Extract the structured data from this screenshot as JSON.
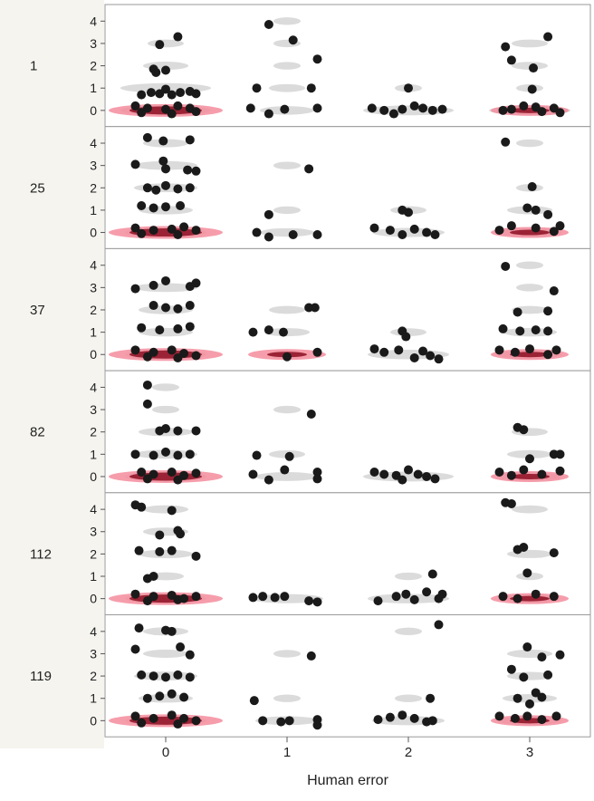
{
  "chart_data": {
    "type": "scatter",
    "xlabel": "Human error",
    "x_ticks": [
      "0",
      "1",
      "2",
      "3"
    ],
    "xlim": [
      -0.5,
      3.5
    ],
    "y_ticks": [
      "0",
      "1",
      "2",
      "3",
      "4"
    ],
    "ylim": [
      -0.4,
      4.5
    ],
    "grid": false,
    "colors": {
      "points": "#1a1a1a",
      "contour": "#cccccc",
      "density_outer": "#f48c9c",
      "density_inner": "#9b2335",
      "label_column": "#f5f4ef"
    },
    "panels": [
      {
        "label": "1",
        "points": [
          [
            0.1,
            3.3
          ],
          [
            -0.05,
            2.95
          ],
          [
            -0.1,
            1.85
          ],
          [
            0.0,
            1.8
          ],
          [
            -0.08,
            1.7
          ],
          [
            0.0,
            0.95
          ],
          [
            -0.2,
            0.7
          ],
          [
            -0.12,
            0.8
          ],
          [
            -0.05,
            0.75
          ],
          [
            0.05,
            0.7
          ],
          [
            0.12,
            0.8
          ],
          [
            0.2,
            0.85
          ],
          [
            0.25,
            0.75
          ],
          [
            -0.25,
            0.2
          ],
          [
            -0.15,
            0.1
          ],
          [
            0.0,
            0.05
          ],
          [
            0.1,
            0.2
          ],
          [
            0.2,
            0.1
          ],
          [
            0.25,
            -0.05
          ],
          [
            -0.2,
            -0.1
          ],
          [
            0.05,
            -0.15
          ],
          [
            0.85,
            3.85
          ],
          [
            1.05,
            3.15
          ],
          [
            1.25,
            2.3
          ],
          [
            0.75,
            1.0
          ],
          [
            1.2,
            1.0
          ],
          [
            0.7,
            0.1
          ],
          [
            0.85,
            -0.15
          ],
          [
            0.98,
            0.05
          ],
          [
            1.25,
            0.1
          ],
          [
            2.0,
            1.0
          ],
          [
            1.7,
            0.1
          ],
          [
            1.8,
            0.0
          ],
          [
            1.88,
            -0.15
          ],
          [
            1.95,
            0.05
          ],
          [
            2.05,
            0.2
          ],
          [
            2.12,
            0.1
          ],
          [
            2.2,
            0.0
          ],
          [
            2.28,
            0.05
          ],
          [
            2.8,
            2.85
          ],
          [
            3.15,
            3.3
          ],
          [
            2.85,
            2.25
          ],
          [
            3.03,
            1.9
          ],
          [
            3.02,
            0.95
          ],
          [
            2.78,
            0.0
          ],
          [
            2.85,
            0.05
          ],
          [
            2.95,
            0.2
          ],
          [
            3.05,
            0.15
          ],
          [
            3.1,
            -0.05
          ],
          [
            3.2,
            0.1
          ],
          [
            3.25,
            -0.1
          ]
        ],
        "density_at_zero": [
          0,
          3
        ]
      },
      {
        "label": "25",
        "points": [
          [
            -0.15,
            4.25
          ],
          [
            -0.02,
            4.1
          ],
          [
            0.2,
            4.15
          ],
          [
            -0.25,
            3.05
          ],
          [
            -0.02,
            3.2
          ],
          [
            0.0,
            2.85
          ],
          [
            0.18,
            2.8
          ],
          [
            0.25,
            2.75
          ],
          [
            -0.15,
            2.0
          ],
          [
            -0.08,
            1.9
          ],
          [
            0.0,
            2.1
          ],
          [
            0.1,
            1.95
          ],
          [
            0.2,
            2.0
          ],
          [
            -0.2,
            1.2
          ],
          [
            -0.1,
            1.1
          ],
          [
            0.0,
            1.15
          ],
          [
            0.12,
            1.2
          ],
          [
            -0.25,
            0.2
          ],
          [
            -0.1,
            0.1
          ],
          [
            0.05,
            0.15
          ],
          [
            0.15,
            0.25
          ],
          [
            0.25,
            0.1
          ],
          [
            -0.2,
            -0.05
          ],
          [
            0.1,
            -0.1
          ],
          [
            1.18,
            2.85
          ],
          [
            0.85,
            0.8
          ],
          [
            0.75,
            0.0
          ],
          [
            0.85,
            -0.2
          ],
          [
            1.05,
            -0.1
          ],
          [
            1.25,
            -0.1
          ],
          [
            1.95,
            1.0
          ],
          [
            2.0,
            0.9
          ],
          [
            1.72,
            0.2
          ],
          [
            1.85,
            0.1
          ],
          [
            1.95,
            -0.1
          ],
          [
            2.05,
            0.15
          ],
          [
            2.15,
            0.0
          ],
          [
            2.22,
            -0.1
          ],
          [
            2.8,
            4.05
          ],
          [
            3.02,
            2.05
          ],
          [
            2.98,
            1.1
          ],
          [
            3.05,
            1.0
          ],
          [
            3.15,
            0.8
          ],
          [
            2.75,
            0.1
          ],
          [
            2.85,
            0.3
          ],
          [
            3.05,
            0.2
          ],
          [
            3.2,
            0.05
          ],
          [
            3.25,
            0.3
          ]
        ],
        "density_at_zero": [
          0,
          3
        ]
      },
      {
        "label": "37",
        "points": [
          [
            -0.25,
            2.95
          ],
          [
            -0.1,
            3.1
          ],
          [
            0.0,
            3.3
          ],
          [
            0.25,
            3.2
          ],
          [
            0.2,
            3.05
          ],
          [
            -0.1,
            2.2
          ],
          [
            0.0,
            2.1
          ],
          [
            0.1,
            2.05
          ],
          [
            0.2,
            2.2
          ],
          [
            -0.2,
            1.2
          ],
          [
            -0.05,
            1.1
          ],
          [
            0.1,
            1.15
          ],
          [
            0.2,
            1.25
          ],
          [
            -0.25,
            0.2
          ],
          [
            -0.1,
            0.1
          ],
          [
            0.05,
            0.2
          ],
          [
            0.15,
            0.05
          ],
          [
            0.25,
            -0.05
          ],
          [
            -0.15,
            -0.1
          ],
          [
            0.1,
            -0.15
          ],
          [
            1.18,
            2.1
          ],
          [
            1.23,
            2.1
          ],
          [
            0.72,
            1.0
          ],
          [
            0.85,
            1.1
          ],
          [
            0.97,
            1.0
          ],
          [
            1.0,
            -0.1
          ],
          [
            1.25,
            0.1
          ],
          [
            1.95,
            1.05
          ],
          [
            1.98,
            0.8
          ],
          [
            1.72,
            0.25
          ],
          [
            1.8,
            0.1
          ],
          [
            1.92,
            0.2
          ],
          [
            2.05,
            -0.15
          ],
          [
            2.12,
            0.15
          ],
          [
            2.18,
            -0.05
          ],
          [
            2.25,
            -0.2
          ],
          [
            2.8,
            3.95
          ],
          [
            3.2,
            2.85
          ],
          [
            2.9,
            1.9
          ],
          [
            3.15,
            1.95
          ],
          [
            2.78,
            1.15
          ],
          [
            2.92,
            1.05
          ],
          [
            3.05,
            1.1
          ],
          [
            3.15,
            1.05
          ],
          [
            2.75,
            0.2
          ],
          [
            2.88,
            0.1
          ],
          [
            3.0,
            0.25
          ],
          [
            3.15,
            0.0
          ],
          [
            3.22,
            0.2
          ]
        ],
        "density_at_zero": [
          0,
          1,
          3
        ]
      },
      {
        "label": "82",
        "points": [
          [
            -0.15,
            4.1
          ],
          [
            -0.15,
            3.25
          ],
          [
            0.0,
            2.15
          ],
          [
            -0.05,
            2.05
          ],
          [
            0.1,
            2.05
          ],
          [
            0.25,
            2.05
          ],
          [
            -0.25,
            1.0
          ],
          [
            -0.1,
            0.95
          ],
          [
            0.0,
            1.1
          ],
          [
            0.1,
            0.95
          ],
          [
            0.2,
            1.0
          ],
          [
            -0.2,
            0.2
          ],
          [
            -0.1,
            0.1
          ],
          [
            0.05,
            0.2
          ],
          [
            0.15,
            0.05
          ],
          [
            0.25,
            0.15
          ],
          [
            -0.15,
            -0.1
          ],
          [
            0.1,
            -0.15
          ],
          [
            1.2,
            2.8
          ],
          [
            0.75,
            0.95
          ],
          [
            1.02,
            0.9
          ],
          [
            0.98,
            0.3
          ],
          [
            0.72,
            0.1
          ],
          [
            0.85,
            -0.15
          ],
          [
            1.25,
            0.2
          ],
          [
            1.25,
            -0.1
          ],
          [
            1.72,
            0.2
          ],
          [
            1.8,
            0.1
          ],
          [
            1.9,
            0.05
          ],
          [
            1.95,
            -0.15
          ],
          [
            2.0,
            0.3
          ],
          [
            2.08,
            0.1
          ],
          [
            2.15,
            0.0
          ],
          [
            2.22,
            -0.1
          ],
          [
            2.9,
            2.2
          ],
          [
            2.95,
            2.1
          ],
          [
            3.2,
            1.0
          ],
          [
            3.25,
            1.0
          ],
          [
            3.0,
            0.8
          ],
          [
            2.75,
            0.2
          ],
          [
            2.85,
            0.05
          ],
          [
            2.95,
            0.3
          ],
          [
            3.1,
            0.1
          ],
          [
            3.25,
            0.25
          ]
        ],
        "density_at_zero": [
          0,
          3
        ]
      },
      {
        "label": "112",
        "points": [
          [
            -0.25,
            4.2
          ],
          [
            -0.2,
            4.1
          ],
          [
            0.05,
            3.95
          ],
          [
            0.1,
            3.05
          ],
          [
            0.12,
            2.9
          ],
          [
            -0.05,
            2.85
          ],
          [
            -0.22,
            2.15
          ],
          [
            -0.05,
            2.1
          ],
          [
            0.05,
            2.15
          ],
          [
            0.25,
            1.9
          ],
          [
            -0.15,
            0.9
          ],
          [
            -0.1,
            1.0
          ],
          [
            -0.25,
            0.2
          ],
          [
            -0.1,
            0.1
          ],
          [
            0.05,
            0.15
          ],
          [
            0.15,
            0.0
          ],
          [
            0.25,
            0.1
          ],
          [
            -0.15,
            -0.1
          ],
          [
            0.1,
            -0.05
          ],
          [
            0.72,
            0.05
          ],
          [
            0.8,
            0.1
          ],
          [
            0.9,
            0.05
          ],
          [
            0.98,
            0.1
          ],
          [
            1.18,
            -0.1
          ],
          [
            1.25,
            -0.15
          ],
          [
            2.2,
            1.1
          ],
          [
            1.75,
            -0.1
          ],
          [
            1.9,
            0.1
          ],
          [
            1.98,
            0.2
          ],
          [
            2.05,
            -0.05
          ],
          [
            2.15,
            0.3
          ],
          [
            2.25,
            0.0
          ],
          [
            2.28,
            0.2
          ],
          [
            2.8,
            4.3
          ],
          [
            2.85,
            4.25
          ],
          [
            2.95,
            2.3
          ],
          [
            2.9,
            2.2
          ],
          [
            3.2,
            2.05
          ],
          [
            2.98,
            1.15
          ],
          [
            2.78,
            0.1
          ],
          [
            2.9,
            0.0
          ],
          [
            3.05,
            0.2
          ],
          [
            3.2,
            0.1
          ]
        ],
        "density_at_zero": [
          0,
          3
        ]
      },
      {
        "label": "119",
        "points": [
          [
            -0.22,
            4.15
          ],
          [
            0.0,
            4.05
          ],
          [
            0.05,
            4.0
          ],
          [
            -0.25,
            3.2
          ],
          [
            0.12,
            3.3
          ],
          [
            0.2,
            2.95
          ],
          [
            -0.2,
            2.05
          ],
          [
            -0.1,
            2.0
          ],
          [
            0.0,
            1.95
          ],
          [
            0.1,
            2.05
          ],
          [
            0.2,
            1.95
          ],
          [
            -0.15,
            1.0
          ],
          [
            -0.05,
            1.1
          ],
          [
            0.05,
            1.2
          ],
          [
            0.15,
            1.05
          ],
          [
            -0.25,
            0.2
          ],
          [
            -0.1,
            0.1
          ],
          [
            0.05,
            0.25
          ],
          [
            0.15,
            0.1
          ],
          [
            0.25,
            0.0
          ],
          [
            -0.2,
            -0.1
          ],
          [
            0.1,
            -0.15
          ],
          [
            1.2,
            2.9
          ],
          [
            0.73,
            0.9
          ],
          [
            0.8,
            0.0
          ],
          [
            0.95,
            -0.05
          ],
          [
            1.02,
            0.0
          ],
          [
            1.25,
            0.05
          ],
          [
            1.25,
            -0.2
          ],
          [
            2.25,
            4.3
          ],
          [
            2.18,
            1.0
          ],
          [
            1.75,
            0.05
          ],
          [
            1.85,
            0.15
          ],
          [
            1.95,
            0.25
          ],
          [
            2.05,
            0.1
          ],
          [
            2.15,
            -0.05
          ],
          [
            2.2,
            0.0
          ],
          [
            2.98,
            3.3
          ],
          [
            3.1,
            2.85
          ],
          [
            3.25,
            2.95
          ],
          [
            2.85,
            2.3
          ],
          [
            2.95,
            1.95
          ],
          [
            3.15,
            2.05
          ],
          [
            3.05,
            1.25
          ],
          [
            2.9,
            1.0
          ],
          [
            3.1,
            1.05
          ],
          [
            3.0,
            0.75
          ],
          [
            2.75,
            0.2
          ],
          [
            2.88,
            0.1
          ],
          [
            2.98,
            0.2
          ],
          [
            3.1,
            0.05
          ],
          [
            3.22,
            0.2
          ]
        ],
        "density_at_zero": [
          0,
          3
        ]
      }
    ]
  }
}
